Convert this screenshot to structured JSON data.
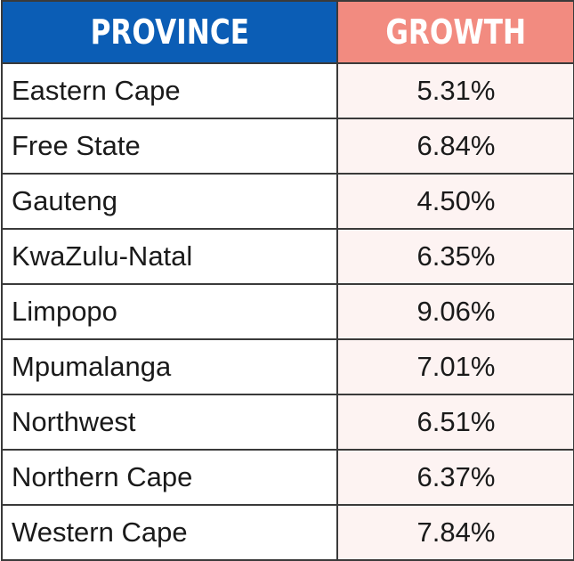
{
  "chart_data": {
    "type": "table",
    "columns": [
      "PROVINCE",
      "GROWTH"
    ],
    "rows": [
      {
        "province": "Eastern Cape",
        "growth": "5.31%"
      },
      {
        "province": "Free State",
        "growth": "6.84%"
      },
      {
        "province": "Gauteng",
        "growth": "4.50%"
      },
      {
        "province": "KwaZulu-Natal",
        "growth": "6.35%"
      },
      {
        "province": "Limpopo",
        "growth": "9.06%"
      },
      {
        "province": "Mpumalanga",
        "growth": "7.01%"
      },
      {
        "province": "Northwest",
        "growth": "6.51%"
      },
      {
        "province": "Northern Cape",
        "growth": "6.37%"
      },
      {
        "province": "Western Cape",
        "growth": "7.84%"
      }
    ],
    "growth_values": [
      5.31,
      6.84,
      4.5,
      6.35,
      9.06,
      7.01,
      6.51,
      6.37,
      7.84
    ]
  },
  "colors": {
    "province_header": "#0b5db5",
    "growth_header": "#f28b80",
    "growth_cell": "#fdf3f2"
  }
}
